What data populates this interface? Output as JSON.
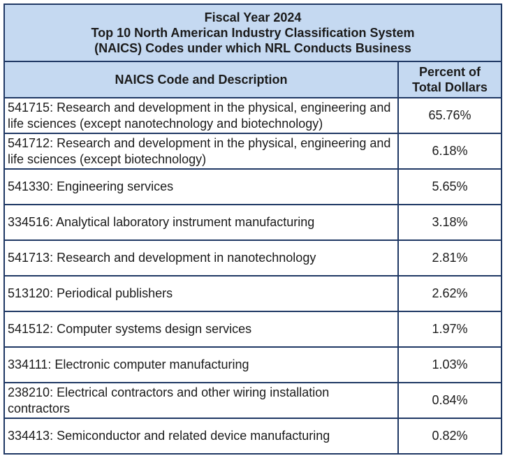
{
  "title": {
    "line1": "Fiscal Year 2024",
    "line2": "Top 10 North American Industry Classification System",
    "line3": "(NAICS) Codes under which NRL Conducts Business"
  },
  "header": {
    "col1": "NAICS Code and Description",
    "col2_line1": "Percent of",
    "col2_line2": "Total Dollars"
  },
  "rows": [
    {
      "description": "541715:  Research and development in the physical, engineering and life sciences (except nanotechnology and biotechnology)",
      "percent": "65.76%"
    },
    {
      "description": "541712:  Research and development in the physical, engineering and life sciences (except biotechnology)",
      "percent": "6.18%"
    },
    {
      "description": "541330:  Engineering services",
      "percent": "5.65%"
    },
    {
      "description": "334516:  Analytical laboratory instrument manufacturing",
      "percent": "3.18%"
    },
    {
      "description": "541713:  Research and development in nanotechnology",
      "percent": "2.81%"
    },
    {
      "description": "513120:  Periodical publishers",
      "percent": "2.62%"
    },
    {
      "description": "541512:  Computer systems design services",
      "percent": "1.97%"
    },
    {
      "description": "334111:  Electronic computer manufacturing",
      "percent": "1.03%"
    },
    {
      "description": "238210:  Electrical contractors and other wiring installation contractors",
      "percent": "0.84%"
    },
    {
      "description": "334413:  Semiconductor and related device manufacturing",
      "percent": "0.82%"
    }
  ]
}
